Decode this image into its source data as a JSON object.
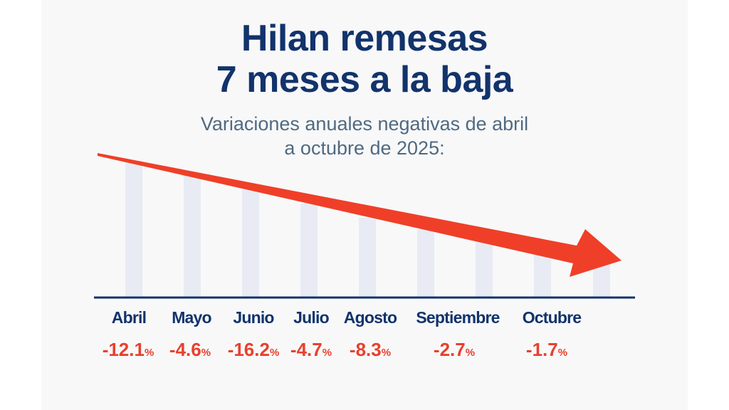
{
  "header": {
    "title_line1": "Hilan remesas",
    "title_line2": "7 meses a la baja",
    "subtitle_line1": "Variaciones anuales negativas de abril",
    "subtitle_line2": "a octubre de 2025:"
  },
  "colors": {
    "title": "#12336b",
    "subtitle": "#4f6a82",
    "bar": "#e8ebf3",
    "baseline": "#12336b",
    "arrow": "#ef3f28",
    "negative_value": "#e8402d"
  },
  "chart_data": {
    "type": "bar",
    "categories": [
      "Abril",
      "Mayo",
      "Junio",
      "Julio",
      "Agosto",
      "Septiembre",
      "Octubre"
    ],
    "values": [
      -12.1,
      -4.6,
      -16.2,
      -4.7,
      -8.3,
      -2.7,
      -1.7
    ],
    "value_labels": [
      "-12.1",
      "-4.6",
      "-16.2",
      "-4.7",
      "-8.3",
      "-2.7",
      "-1.7"
    ],
    "unit": "%",
    "trend_arrow": "downward",
    "grid": false,
    "legend": "none"
  }
}
